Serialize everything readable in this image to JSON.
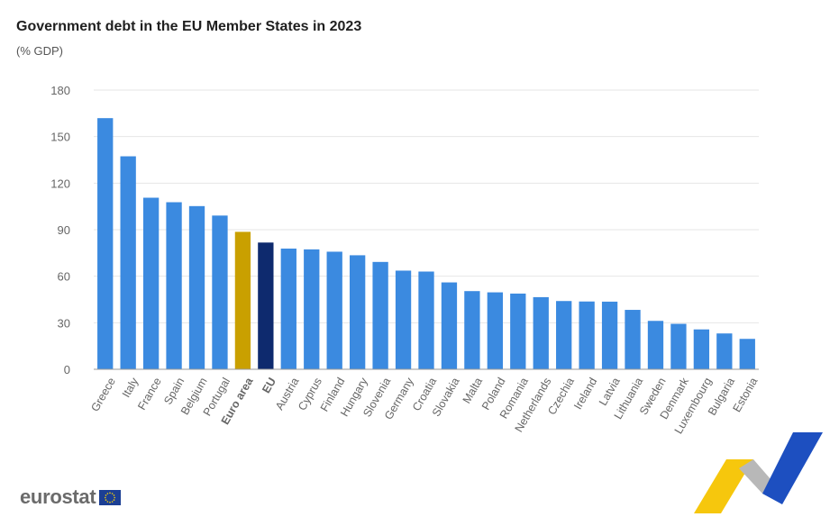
{
  "title": "Government debt in the EU Member States in 2023",
  "subtitle": "(% GDP)",
  "brand": "eurostat",
  "colors": {
    "bar": "#3b8ae0",
    "euro_area": "#c9a000",
    "eu": "#0e2a6e",
    "grid": "#e6e6e6",
    "axis_text": "#666666"
  },
  "chart_data": {
    "type": "bar",
    "title": "Government debt in the EU Member States in 2023",
    "subtitle": "(% GDP)",
    "xlabel": "",
    "ylabel": "",
    "ylim": [
      0,
      180
    ],
    "yticks": [
      0,
      30,
      60,
      90,
      120,
      150,
      180
    ],
    "grid": true,
    "categories": [
      "Greece",
      "Italy",
      "France",
      "Spain",
      "Belgium",
      "Portugal",
      "Euro area",
      "EU",
      "Austria",
      "Cyprus",
      "Finland",
      "Hungary",
      "Slovenia",
      "Germany",
      "Croatia",
      "Slovakia",
      "Malta",
      "Poland",
      "Romania",
      "Netherlands",
      "Czechia",
      "Ireland",
      "Latvia",
      "Lithuania",
      "Sweden",
      "Denmark",
      "Luxembourg",
      "Bulgaria",
      "Estonia"
    ],
    "values": [
      161.9,
      137.3,
      110.6,
      107.7,
      105.2,
      99.1,
      88.6,
      81.7,
      77.8,
      77.3,
      75.8,
      73.5,
      69.2,
      63.6,
      63.0,
      56.0,
      50.4,
      49.6,
      48.8,
      46.5,
      44.0,
      43.7,
      43.6,
      38.3,
      31.2,
      29.3,
      25.7,
      23.1,
      19.6
    ],
    "highlight": {
      "Euro area": "euro_area",
      "EU": "eu"
    },
    "bold_labels": [
      "Euro area",
      "EU"
    ]
  }
}
